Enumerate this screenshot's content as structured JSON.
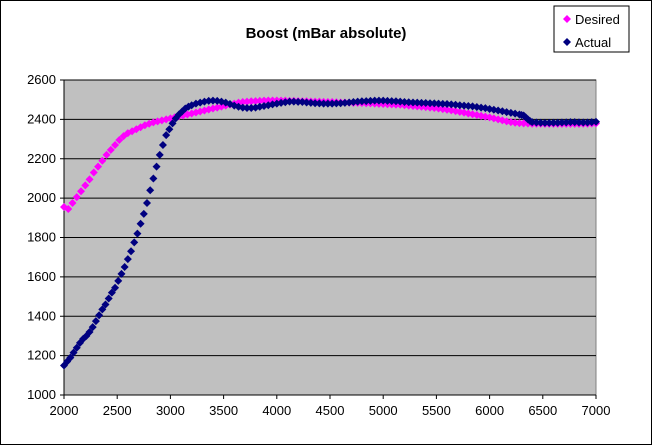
{
  "chart_data": {
    "type": "scatter",
    "title": "Boost (mBar absolute)",
    "xlabel": "",
    "ylabel": "",
    "xlim": [
      2000,
      7000
    ],
    "ylim": [
      1000,
      2600
    ],
    "xticks": [
      2000,
      2500,
      3000,
      3500,
      4000,
      4500,
      5000,
      5500,
      6000,
      6500,
      7000
    ],
    "yticks": [
      1000,
      1200,
      1400,
      1600,
      1800,
      2000,
      2200,
      2400,
      2600
    ],
    "grid": "horizontal",
    "plot_background": "#c0c0c0",
    "legend_position": "top-right",
    "series": [
      {
        "name": "Desired",
        "color": "#ff00ff",
        "marker": "diamond",
        "points": [
          [
            2000,
            1955
          ],
          [
            2040,
            1945
          ],
          [
            2080,
            1975
          ],
          [
            2120,
            2005
          ],
          [
            2160,
            2035
          ],
          [
            2200,
            2065
          ],
          [
            2240,
            2095
          ],
          [
            2280,
            2130
          ],
          [
            2320,
            2160
          ],
          [
            2360,
            2190
          ],
          [
            2400,
            2220
          ],
          [
            2440,
            2245
          ],
          [
            2480,
            2270
          ],
          [
            2520,
            2295
          ],
          [
            2560,
            2315
          ],
          [
            2600,
            2330
          ],
          [
            2640,
            2340
          ],
          [
            2680,
            2350
          ],
          [
            2720,
            2360
          ],
          [
            2760,
            2370
          ],
          [
            2800,
            2378
          ],
          [
            2840,
            2385
          ],
          [
            2880,
            2390
          ],
          [
            2920,
            2395
          ],
          [
            2960,
            2400
          ],
          [
            3000,
            2405
          ],
          [
            3040,
            2410
          ],
          [
            3080,
            2415
          ],
          [
            3120,
            2420
          ],
          [
            3160,
            2425
          ],
          [
            3200,
            2430
          ],
          [
            3240,
            2435
          ],
          [
            3280,
            2440
          ],
          [
            3320,
            2445
          ],
          [
            3360,
            2450
          ],
          [
            3400,
            2455
          ],
          [
            3440,
            2460
          ],
          [
            3480,
            2465
          ],
          [
            3520,
            2470
          ],
          [
            3560,
            2475
          ],
          [
            3600,
            2480
          ],
          [
            3640,
            2485
          ],
          [
            3680,
            2488
          ],
          [
            3720,
            2490
          ],
          [
            3760,
            2492
          ],
          [
            3800,
            2493
          ],
          [
            3840,
            2494
          ],
          [
            3880,
            2495
          ],
          [
            3920,
            2496
          ],
          [
            3960,
            2496
          ],
          [
            4000,
            2496
          ],
          [
            4040,
            2495
          ],
          [
            4080,
            2495
          ],
          [
            4120,
            2494
          ],
          [
            4160,
            2494
          ],
          [
            4200,
            2493
          ],
          [
            4240,
            2492
          ],
          [
            4280,
            2492
          ],
          [
            4320,
            2491
          ],
          [
            4360,
            2490
          ],
          [
            4400,
            2490
          ],
          [
            4440,
            2489
          ],
          [
            4480,
            2488
          ],
          [
            4520,
            2488
          ],
          [
            4560,
            2487
          ],
          [
            4600,
            2486
          ],
          [
            4640,
            2486
          ],
          [
            4680,
            2485
          ],
          [
            4720,
            2484
          ],
          [
            4760,
            2484
          ],
          [
            4800,
            2483
          ],
          [
            4840,
            2482
          ],
          [
            4880,
            2481
          ],
          [
            4920,
            2480
          ],
          [
            4960,
            2479
          ],
          [
            5000,
            2478
          ],
          [
            5040,
            2477
          ],
          [
            5080,
            2476
          ],
          [
            5120,
            2475
          ],
          [
            5160,
            2474
          ],
          [
            5200,
            2472
          ],
          [
            5240,
            2470
          ],
          [
            5280,
            2468
          ],
          [
            5320,
            2466
          ],
          [
            5360,
            2464
          ],
          [
            5400,
            2462
          ],
          [
            5440,
            2460
          ],
          [
            5480,
            2458
          ],
          [
            5520,
            2455
          ],
          [
            5560,
            2452
          ],
          [
            5600,
            2449
          ],
          [
            5640,
            2446
          ],
          [
            5680,
            2442
          ],
          [
            5720,
            2438
          ],
          [
            5760,
            2434
          ],
          [
            5800,
            2430
          ],
          [
            5840,
            2426
          ],
          [
            5880,
            2422
          ],
          [
            5920,
            2418
          ],
          [
            5960,
            2414
          ],
          [
            6000,
            2410
          ],
          [
            6040,
            2405
          ],
          [
            6080,
            2400
          ],
          [
            6120,
            2395
          ],
          [
            6160,
            2390
          ],
          [
            6200,
            2386
          ],
          [
            6240,
            2383
          ],
          [
            6280,
            2381
          ],
          [
            6320,
            2380
          ],
          [
            6360,
            2379
          ],
          [
            6400,
            2378
          ],
          [
            6440,
            2378
          ],
          [
            6480,
            2378
          ],
          [
            6520,
            2377
          ],
          [
            6560,
            2377
          ],
          [
            6600,
            2377
          ],
          [
            6640,
            2377
          ],
          [
            6680,
            2377
          ],
          [
            6720,
            2377
          ],
          [
            6760,
            2377
          ],
          [
            6800,
            2377
          ],
          [
            6840,
            2377
          ],
          [
            6880,
            2378
          ],
          [
            6920,
            2378
          ],
          [
            6960,
            2379
          ],
          [
            7000,
            2380
          ]
        ]
      },
      {
        "name": "Actual",
        "color": "#000080",
        "marker": "diamond",
        "points": [
          [
            2000,
            1150
          ],
          [
            2030,
            1170
          ],
          [
            2060,
            1190
          ],
          [
            2090,
            1215
          ],
          [
            2120,
            1240
          ],
          [
            2150,
            1265
          ],
          [
            2180,
            1285
          ],
          [
            2210,
            1300
          ],
          [
            2240,
            1320
          ],
          [
            2270,
            1345
          ],
          [
            2300,
            1375
          ],
          [
            2330,
            1405
          ],
          [
            2360,
            1435
          ],
          [
            2390,
            1460
          ],
          [
            2420,
            1490
          ],
          [
            2450,
            1520
          ],
          [
            2480,
            1545
          ],
          [
            2510,
            1580
          ],
          [
            2540,
            1615
          ],
          [
            2570,
            1650
          ],
          [
            2600,
            1690
          ],
          [
            2630,
            1730
          ],
          [
            2660,
            1775
          ],
          [
            2690,
            1820
          ],
          [
            2720,
            1870
          ],
          [
            2750,
            1920
          ],
          [
            2780,
            1975
          ],
          [
            2810,
            2040
          ],
          [
            2840,
            2100
          ],
          [
            2870,
            2160
          ],
          [
            2900,
            2220
          ],
          [
            2930,
            2270
          ],
          [
            2960,
            2320
          ],
          [
            2990,
            2350
          ],
          [
            3020,
            2380
          ],
          [
            3050,
            2405
          ],
          [
            3080,
            2425
          ],
          [
            3110,
            2440
          ],
          [
            3140,
            2455
          ],
          [
            3170,
            2465
          ],
          [
            3200,
            2472
          ],
          [
            3240,
            2480
          ],
          [
            3280,
            2485
          ],
          [
            3320,
            2490
          ],
          [
            3360,
            2494
          ],
          [
            3400,
            2495
          ],
          [
            3440,
            2494
          ],
          [
            3480,
            2490
          ],
          [
            3520,
            2485
          ],
          [
            3560,
            2478
          ],
          [
            3600,
            2470
          ],
          [
            3640,
            2464
          ],
          [
            3680,
            2460
          ],
          [
            3720,
            2458
          ],
          [
            3760,
            2458
          ],
          [
            3800,
            2460
          ],
          [
            3840,
            2464
          ],
          [
            3880,
            2468
          ],
          [
            3920,
            2472
          ],
          [
            3960,
            2476
          ],
          [
            4000,
            2480
          ],
          [
            4040,
            2484
          ],
          [
            4080,
            2487
          ],
          [
            4120,
            2490
          ],
          [
            4160,
            2490
          ],
          [
            4200,
            2489
          ],
          [
            4240,
            2488
          ],
          [
            4280,
            2486
          ],
          [
            4320,
            2484
          ],
          [
            4360,
            2482
          ],
          [
            4400,
            2481
          ],
          [
            4440,
            2480
          ],
          [
            4480,
            2480
          ],
          [
            4520,
            2480
          ],
          [
            4560,
            2481
          ],
          [
            4600,
            2482
          ],
          [
            4640,
            2484
          ],
          [
            4680,
            2486
          ],
          [
            4720,
            2488
          ],
          [
            4760,
            2490
          ],
          [
            4800,
            2492
          ],
          [
            4840,
            2493
          ],
          [
            4880,
            2494
          ],
          [
            4920,
            2495
          ],
          [
            4960,
            2495
          ],
          [
            5000,
            2495
          ],
          [
            5040,
            2494
          ],
          [
            5080,
            2493
          ],
          [
            5120,
            2492
          ],
          [
            5160,
            2490
          ],
          [
            5200,
            2488
          ],
          [
            5240,
            2487
          ],
          [
            5280,
            2486
          ],
          [
            5320,
            2485
          ],
          [
            5360,
            2484
          ],
          [
            5400,
            2483
          ],
          [
            5440,
            2482
          ],
          [
            5480,
            2481
          ],
          [
            5520,
            2480
          ],
          [
            5560,
            2479
          ],
          [
            5600,
            2478
          ],
          [
            5640,
            2476
          ],
          [
            5680,
            2474
          ],
          [
            5720,
            2472
          ],
          [
            5760,
            2470
          ],
          [
            5800,
            2468
          ],
          [
            5840,
            2466
          ],
          [
            5880,
            2463
          ],
          [
            5920,
            2460
          ],
          [
            5960,
            2457
          ],
          [
            6000,
            2453
          ],
          [
            6040,
            2449
          ],
          [
            6080,
            2445
          ],
          [
            6120,
            2441
          ],
          [
            6160,
            2437
          ],
          [
            6200,
            2433
          ],
          [
            6240,
            2429
          ],
          [
            6280,
            2425
          ],
          [
            6300,
            2422
          ],
          [
            6320,
            2420
          ],
          [
            6340,
            2410
          ],
          [
            6360,
            2400
          ],
          [
            6380,
            2392
          ],
          [
            6400,
            2386
          ],
          [
            6440,
            2384
          ],
          [
            6480,
            2383
          ],
          [
            6520,
            2382
          ],
          [
            6560,
            2382
          ],
          [
            6600,
            2383
          ],
          [
            6640,
            2383
          ],
          [
            6680,
            2384
          ],
          [
            6720,
            2385
          ],
          [
            6760,
            2386
          ],
          [
            6800,
            2386
          ],
          [
            6840,
            2385
          ],
          [
            6880,
            2384
          ],
          [
            6920,
            2384
          ],
          [
            6960,
            2386
          ],
          [
            7000,
            2388
          ]
        ]
      }
    ]
  }
}
